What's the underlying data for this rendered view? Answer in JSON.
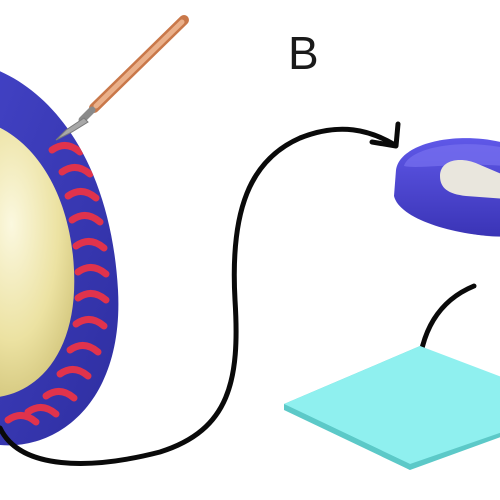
{
  "panel_label": "B",
  "colors": {
    "background": "#ffffff",
    "outer_layer": "#3b3bb5",
    "inner_stripes": "#e0334c",
    "egg_core_light": "#f6f1c4",
    "egg_core_dark": "#cfc277",
    "scalpel_handle": "#d98a58",
    "scalpel_blade": "#9a9a9a",
    "piece_body": "#4a44d0",
    "piece_highlight": "#e9e6dd",
    "slide": "#8ff0ef",
    "slide_edge": "#5cc9c8",
    "arrow": "#0a0a0a"
  },
  "icons": {
    "scalpel": "scalpel-icon",
    "egg": "layered-egg-illustration",
    "piece": "excised-tissue-piece",
    "slide": "glass-slide",
    "arrows": "curved-arrow-icon"
  }
}
